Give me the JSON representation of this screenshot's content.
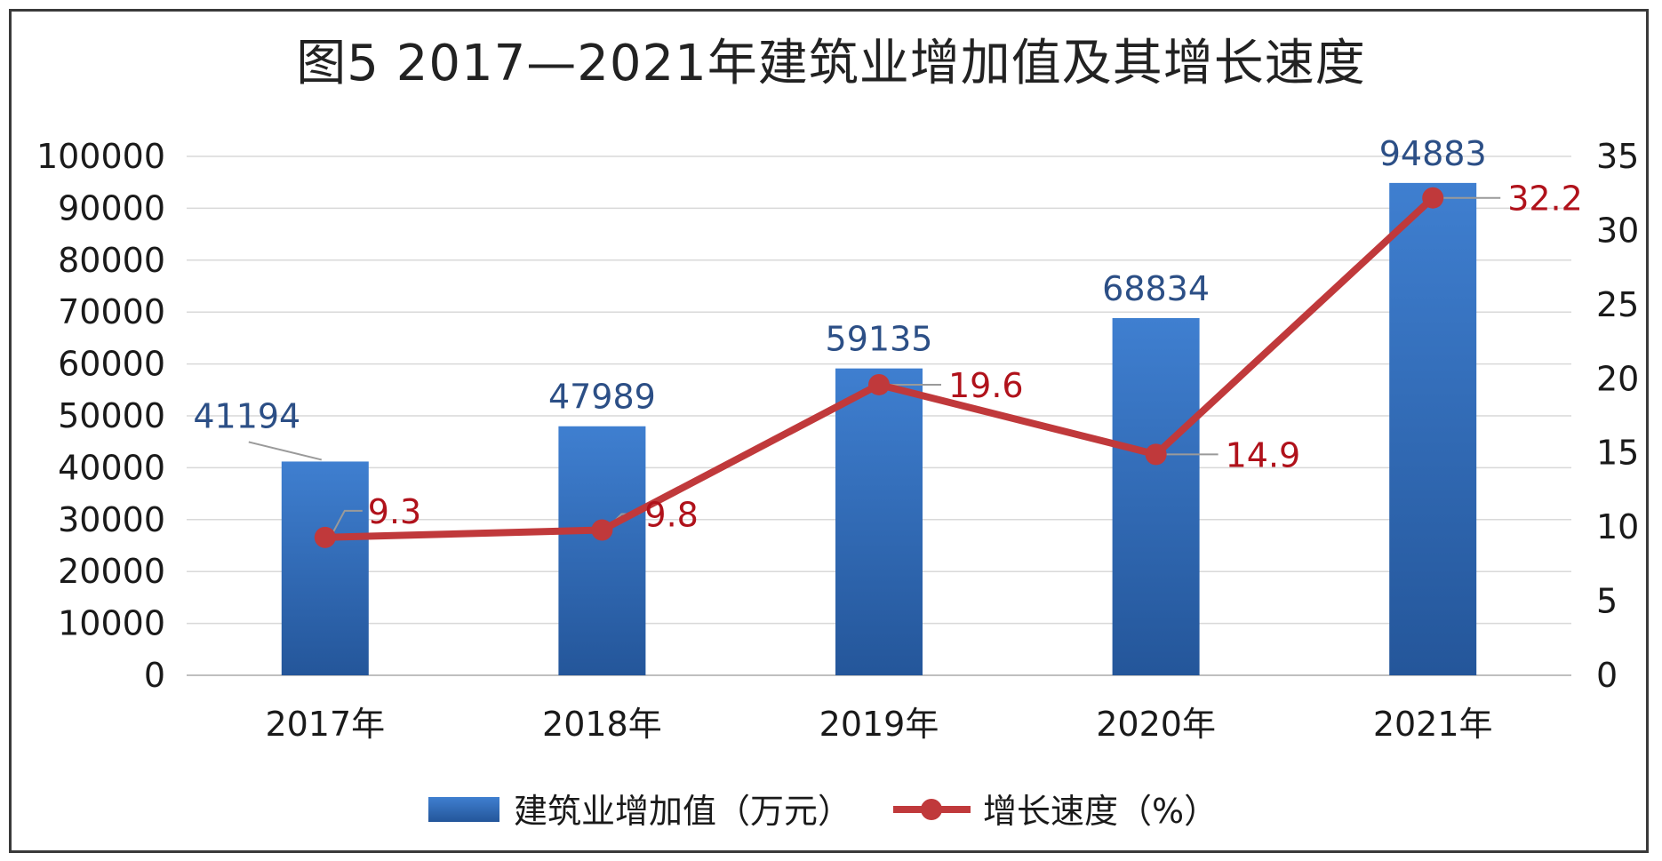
{
  "title": "图5  2017—2021年建筑业增加值及其增长速度",
  "legend": {
    "bar_label": "建筑业增加值（万元）",
    "line_label": "增长速度（%）"
  },
  "colors": {
    "bar_top": "#3f7fd0",
    "bar_bottom": "#24569a",
    "line": "#c0393b",
    "line_marker": "#c0393b",
    "bar_label": "#2c4f86",
    "line_label": "#b0121b",
    "grid": "#d9d9d9"
  },
  "chart_data": {
    "type": "bar",
    "categories": [
      "2017年",
      "2018年",
      "2019年",
      "2020年",
      "2021年"
    ],
    "series": [
      {
        "name": "建筑业增加值（万元）",
        "type": "bar",
        "axis": "left",
        "values": [
          41194,
          47989,
          59135,
          68834,
          94883
        ]
      },
      {
        "name": "增长速度（%）",
        "type": "line",
        "axis": "right",
        "values": [
          9.3,
          9.8,
          19.6,
          14.9,
          32.2
        ]
      }
    ],
    "left_axis": {
      "min": 0,
      "max": 100000,
      "ticks": [
        0,
        10000,
        20000,
        30000,
        40000,
        50000,
        60000,
        70000,
        80000,
        90000,
        100000
      ]
    },
    "right_axis": {
      "min": 0,
      "max": 35,
      "ticks": [
        0,
        5,
        10,
        15,
        20,
        25,
        30,
        35
      ]
    },
    "grid": true,
    "legend_position": "bottom"
  }
}
